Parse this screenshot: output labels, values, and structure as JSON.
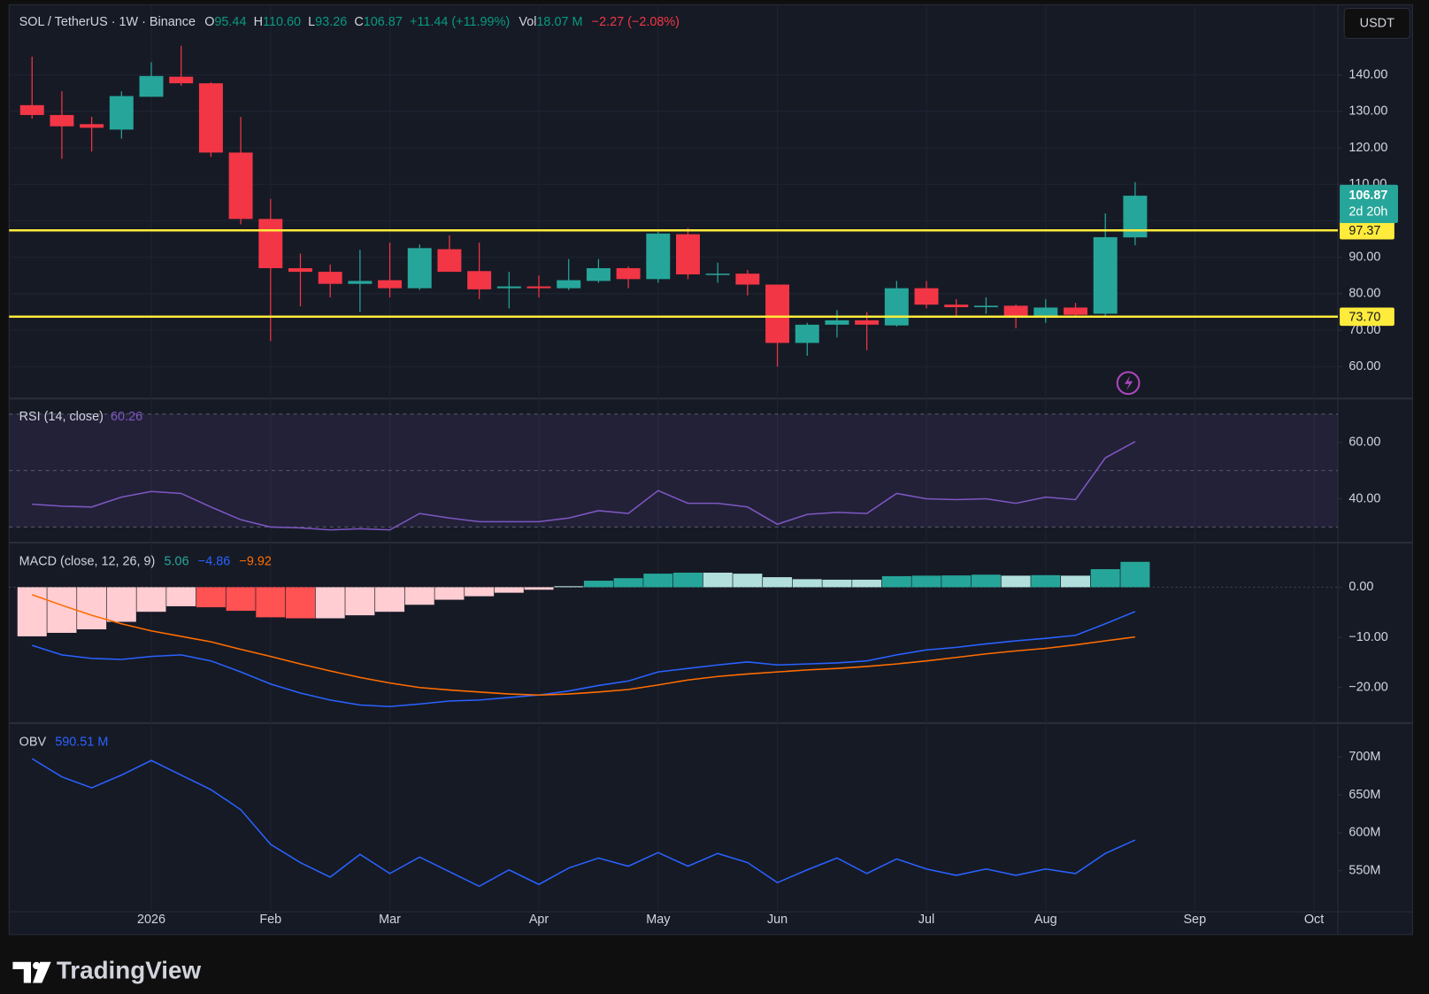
{
  "header": {
    "symbol": "SOL / TetherUS · 1W · Binance",
    "o_key": "O",
    "open": "95.44",
    "h_key": "H",
    "high": "110.60",
    "l_key": "L",
    "low": "93.26",
    "c_key": "C",
    "close": "106.87",
    "change": "+11.44 (+11.99%)",
    "vol_key": "Vol",
    "volume": "18.07 M",
    "vol_change": "−2.27 (−2.08%)"
  },
  "currency_button": "USDT",
  "brand": "TradingView",
  "chart_data": [
    {
      "type": "candlestick",
      "up_color": "#26a69a",
      "down_color": "#f23645",
      "open": [
        131.7,
        129,
        126.5,
        125,
        134,
        139.5,
        137.7,
        118.7,
        100.5,
        87,
        86,
        82.7,
        83.7,
        81.5,
        92.2,
        86.2,
        81.5,
        82,
        81.5,
        83.5,
        87,
        84,
        96.3,
        85.3,
        85.5,
        82.5,
        66.5,
        71.5,
        72.7,
        71.3,
        81.5,
        77,
        76.3,
        76.7,
        73.5,
        76.2,
        74.5,
        95.44
      ],
      "high": [
        145,
        135.5,
        128.5,
        135.5,
        143.5,
        148,
        138,
        128.5,
        106,
        91,
        88,
        92,
        94,
        93.5,
        96,
        94,
        86,
        85,
        89.5,
        89.5,
        87.5,
        97,
        98,
        88.5,
        86.5,
        82.5,
        72,
        75.5,
        75,
        83.5,
        83.5,
        78.5,
        79,
        77,
        78.5,
        77.5,
        102,
        110.6
      ],
      "low": [
        128,
        117,
        119,
        122.5,
        134,
        137,
        117.5,
        99,
        67,
        76.5,
        79,
        75,
        79,
        81,
        86,
        78.5,
        76,
        79,
        81,
        83,
        81.5,
        83,
        84,
        83,
        79.5,
        60,
        63,
        68,
        64.5,
        71,
        76,
        73.5,
        74.5,
        70.5,
        72,
        74,
        74,
        93.26
      ],
      "close": [
        129,
        125.9,
        125.5,
        134.2,
        139.7,
        137.7,
        118.7,
        100.5,
        87,
        86,
        82.7,
        83.5,
        81.5,
        92.5,
        86,
        81.2,
        82,
        81.5,
        83.7,
        87,
        84,
        96.5,
        85.3,
        85.5,
        82.5,
        66.5,
        71.5,
        72.7,
        71.5,
        81.5,
        77,
        76.3,
        76.7,
        74,
        76.2,
        74.2,
        95.5,
        106.87
      ],
      "xlim": [
        -0.77,
        43.8
      ],
      "xticks": [
        {
          "value": 4,
          "label": "2026"
        },
        {
          "value": 8,
          "label": "Feb"
        },
        {
          "value": 12,
          "label": "Mar"
        },
        {
          "value": 17,
          "label": "Apr"
        },
        {
          "value": 21,
          "label": "May"
        },
        {
          "value": 25,
          "label": "Jun"
        },
        {
          "value": 30,
          "label": "Jul"
        },
        {
          "value": 34,
          "label": "Aug"
        },
        {
          "value": 39,
          "label": "Sep"
        },
        {
          "value": 43,
          "label": "Oct"
        }
      ],
      "ylim": [
        51.25,
        159.25
      ],
      "yticks": [
        {
          "value": 60,
          "label": "60.00"
        },
        {
          "value": 70,
          "label": "70.00"
        },
        {
          "value": 80,
          "label": "80.00"
        },
        {
          "value": 90,
          "label": "90.00"
        },
        {
          "value": 100,
          "label": "100.00"
        },
        {
          "value": 110,
          "label": "110.00"
        },
        {
          "value": 120,
          "label": "120.00"
        },
        {
          "value": 130,
          "label": "130.00"
        },
        {
          "value": 140,
          "label": "140.00"
        }
      ],
      "grid": true,
      "levels": [
        {
          "value": 97.37,
          "label": "97.37"
        },
        {
          "value": 73.7,
          "label": "73.70"
        }
      ],
      "level_color": "#ffeb3b",
      "last_price": {
        "value": 106.87,
        "label": "106.87"
      },
      "countdown": "2d 20h"
    },
    {
      "type": "line",
      "title": "RSI (14, close)",
      "legend_value": "60.26",
      "color": "#7e57c2",
      "values": [
        38.1,
        37.4,
        37.1,
        40.6,
        42.6,
        41.9,
        37.1,
        32.6,
        30.0,
        29.7,
        29.0,
        29.4,
        29.0,
        34.8,
        33.2,
        31.9,
        31.9,
        31.9,
        33.2,
        35.8,
        34.8,
        42.9,
        38.4,
        38.4,
        37.1,
        31.0,
        34.5,
        35.2,
        34.8,
        41.9,
        40.0,
        39.7,
        40.0,
        38.4,
        40.6,
        39.7,
        54.5,
        60.26
      ],
      "xlim": [
        -0.77,
        43.8
      ],
      "ylim": [
        24.5,
        75.5
      ],
      "yticks": [
        {
          "value": 40,
          "label": "40.00"
        },
        {
          "value": 60,
          "label": "60.00"
        }
      ],
      "bands": [
        70,
        50,
        30
      ]
    },
    {
      "type": "macd",
      "title": "MACD (close, 12, 26, 9)",
      "legend_values": [
        "5.06",
        "−4.86",
        "−9.92"
      ],
      "series": [
        {
          "kind": "histogram",
          "values": [
            -9.8,
            -9.1,
            -8.4,
            -6.9,
            -4.9,
            -3.8,
            -4.0,
            -4.7,
            -6.0,
            -6.2,
            -6.2,
            -5.6,
            -4.9,
            -3.5,
            -2.5,
            -1.8,
            -1.1,
            -0.5,
            0.2,
            1.3,
            1.8,
            2.7,
            2.9,
            2.9,
            2.7,
            2.0,
            1.6,
            1.5,
            1.5,
            2.2,
            2.3,
            2.35,
            2.5,
            2.3,
            2.4,
            2.3,
            3.6,
            5.06
          ],
          "colors": {
            "grow_above": "#26a69a",
            "fall_above": "#b2dfdb",
            "grow_below": "#ff5252",
            "fall_below": "#ffcdd2"
          }
        },
        {
          "kind": "line",
          "color": "#2962ff",
          "values": [
            -11.6,
            -13.5,
            -14.2,
            -14.4,
            -13.8,
            -13.5,
            -14.7,
            -16.9,
            -19.3,
            -21.1,
            -22.5,
            -23.5,
            -23.8,
            -23.3,
            -22.7,
            -22.5,
            -22.0,
            -21.5,
            -20.7,
            -19.6,
            -18.7,
            -16.9,
            -16.2,
            -15.5,
            -14.9,
            -15.5,
            -15.3,
            -15.1,
            -14.7,
            -13.5,
            -12.5,
            -12.0,
            -11.3,
            -10.7,
            -10.2,
            -9.6,
            -7.3,
            -4.86
          ]
        },
        {
          "kind": "line",
          "color": "#ff6d00",
          "values": [
            -1.5,
            -3.6,
            -5.6,
            -7.3,
            -8.7,
            -9.8,
            -10.9,
            -12.4,
            -13.8,
            -15.3,
            -16.7,
            -18.0,
            -19.1,
            -20.0,
            -20.5,
            -20.9,
            -21.3,
            -21.5,
            -21.3,
            -20.9,
            -20.4,
            -19.5,
            -18.5,
            -17.8,
            -17.3,
            -16.9,
            -16.5,
            -16.2,
            -15.8,
            -15.3,
            -14.7,
            -14.0,
            -13.3,
            -12.7,
            -12.2,
            -11.5,
            -10.7,
            -9.92
          ]
        }
      ],
      "xlim": [
        -0.77,
        43.8
      ],
      "ylim": [
        -27.1,
        8.9
      ],
      "yticks": [
        {
          "value": 0,
          "label": "0.00"
        },
        {
          "value": -10,
          "label": "−10.00"
        },
        {
          "value": -20,
          "label": "−20.00"
        }
      ]
    },
    {
      "type": "line",
      "title": "OBV",
      "legend_value": "590.51 M",
      "color": "#2962ff",
      "values": [
        697600000,
        673600000,
        659200000,
        676000000,
        695200000,
        676000000,
        656800000,
        630400000,
        584800000,
        560800000,
        541600000,
        571600000,
        546400000,
        568000000,
        548800000,
        529600000,
        551200000,
        532000000,
        553600000,
        566800000,
        556000000,
        574000000,
        556000000,
        572800000,
        560800000,
        534400000,
        551200000,
        566800000,
        546400000,
        565600000,
        552400000,
        544000000,
        552400000,
        544000000,
        552400000,
        546400000,
        572800000,
        590510000
      ],
      "xlim": [
        -0.77,
        43.8
      ],
      "ylim": [
        496000000,
        744400000
      ],
      "yticks": [
        {
          "value": 550000000,
          "label": "550M"
        },
        {
          "value": 600000000,
          "label": "600M"
        },
        {
          "value": 650000000,
          "label": "650M"
        },
        {
          "value": 700000000,
          "label": "700M"
        }
      ]
    }
  ]
}
